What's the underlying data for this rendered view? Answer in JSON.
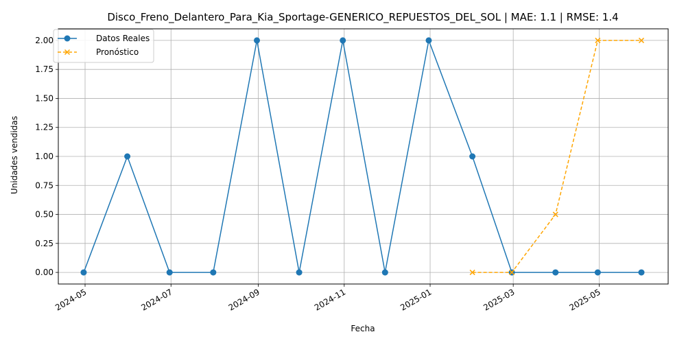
{
  "chart_data": {
    "type": "line",
    "title": "Disco_Freno_Delantero_Para_Kia_Sportage-GENERICO_REPUESTOS_DEL_SOL | MAE: 1.1 | RMSE: 1.4",
    "xlabel": "Fecha",
    "ylabel": "Unidades vendidas",
    "ylim": [
      -0.1,
      2.1
    ],
    "xlim": [
      "2024-04-12",
      "2025-06-19"
    ],
    "grid": true,
    "legend": "top-left",
    "x_ticks": [
      "2024-05",
      "2024-07",
      "2024-09",
      "2024-11",
      "2025-01",
      "2025-03",
      "2025-05"
    ],
    "y_ticks": [
      "0.00",
      "0.25",
      "0.50",
      "0.75",
      "1.00",
      "1.25",
      "1.50",
      "1.75",
      "2.00"
    ],
    "series": [
      {
        "name": "Datos Reales",
        "color": "#1f77b4",
        "style": "solid",
        "marker": "circle",
        "x": [
          "2024-04-30",
          "2024-05-31",
          "2024-06-30",
          "2024-07-31",
          "2024-08-31",
          "2024-09-30",
          "2024-10-31",
          "2024-11-30",
          "2024-12-31",
          "2025-01-31",
          "2025-02-28",
          "2025-03-31",
          "2025-04-30",
          "2025-05-31"
        ],
        "values": [
          0,
          1,
          0,
          0,
          2,
          0,
          2,
          0,
          2,
          1,
          0,
          0,
          0,
          0
        ]
      },
      {
        "name": "Pronóstico",
        "color": "#ffa500",
        "style": "dashed",
        "marker": "x",
        "x": [
          "2025-01-31",
          "2025-02-28",
          "2025-03-31",
          "2025-04-30",
          "2025-05-31"
        ],
        "values": [
          0,
          0,
          0.5,
          2.0,
          2.0
        ]
      }
    ]
  }
}
